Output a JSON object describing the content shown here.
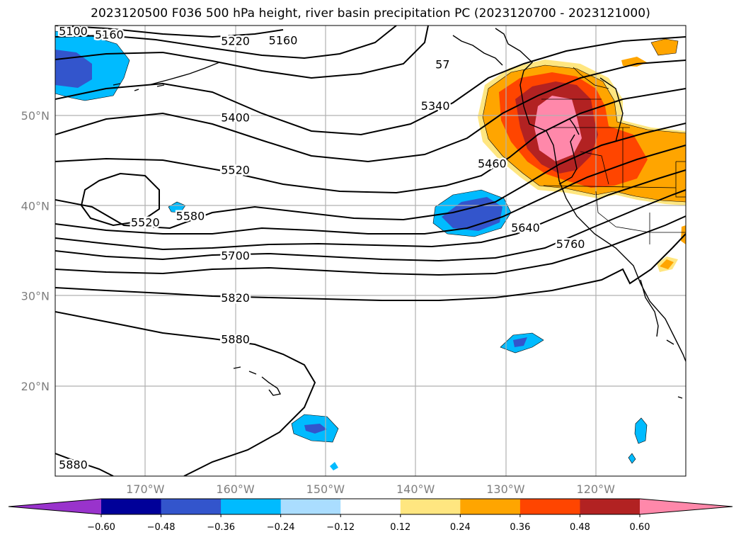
{
  "title": "2023120500 F036 500 hPa height, river basin precipitation PC (2023120700 - 2023121000)",
  "map": {
    "lon_range": [
      -180,
      -110
    ],
    "lat_range": [
      10,
      60
    ],
    "lat_labels": [
      {
        "lat": 50,
        "text": "50°N"
      },
      {
        "lat": 40,
        "text": "40°N"
      },
      {
        "lat": 30,
        "text": "30°N"
      },
      {
        "lat": 20,
        "text": "20°N"
      }
    ],
    "lon_labels": [
      {
        "lon": -170,
        "text": "170°W"
      },
      {
        "lon": -160,
        "text": "160°W"
      },
      {
        "lon": -150,
        "text": "150°W"
      },
      {
        "lon": -140,
        "text": "140°W"
      },
      {
        "lon": -130,
        "text": "130°W"
      },
      {
        "lon": -120,
        "text": "120°W"
      }
    ],
    "contour_labels": [
      {
        "text": "5100",
        "lon": -178,
        "lat": 59.4
      },
      {
        "text": "5160",
        "lon": -174,
        "lat": 59.0
      },
      {
        "text": "5220",
        "lon": -160,
        "lat": 58.3
      },
      {
        "text": "5160",
        "lon": -154.7,
        "lat": 58.4
      },
      {
        "text": "5400",
        "lon": -160,
        "lat": 49.8
      },
      {
        "text": "5520",
        "lon": -160,
        "lat": 44.0
      },
      {
        "text": "5520",
        "lon": -170,
        "lat": 38.2
      },
      {
        "text": "5580",
        "lon": -165,
        "lat": 38.9
      },
      {
        "text": "5700",
        "lon": -160,
        "lat": 34.5
      },
      {
        "text": "5820",
        "lon": -160,
        "lat": 29.8
      },
      {
        "text": "5880",
        "lon": -160,
        "lat": 25.2
      },
      {
        "text": "5880",
        "lon": -178,
        "lat": 11.3
      },
      {
        "text": "5340",
        "lon": -137.8,
        "lat": 51.1
      },
      {
        "text": "5460",
        "lon": -131.5,
        "lat": 44.7
      },
      {
        "text": "5640",
        "lon": -127.8,
        "lat": 37.6
      },
      {
        "text": "5760",
        "lon": -122.8,
        "lat": 35.8
      },
      {
        "text": "57",
        "lon": -137,
        "lat": 55.7
      }
    ]
  },
  "colorbar": {
    "extend": "both",
    "levels": [
      "−0.60",
      "−0.48",
      "−0.36",
      "−0.24",
      "−0.12",
      "0.12",
      "0.24",
      "0.36",
      "0.48",
      "0.60"
    ],
    "colors": [
      "#9933cc",
      "#000099",
      "#3355cc",
      "#00bbff",
      "#aaddff",
      "#ffffff",
      "#ffe680",
      "#ffa500",
      "#ff4500",
      "#b22222",
      "#ff88aa"
    ]
  }
}
